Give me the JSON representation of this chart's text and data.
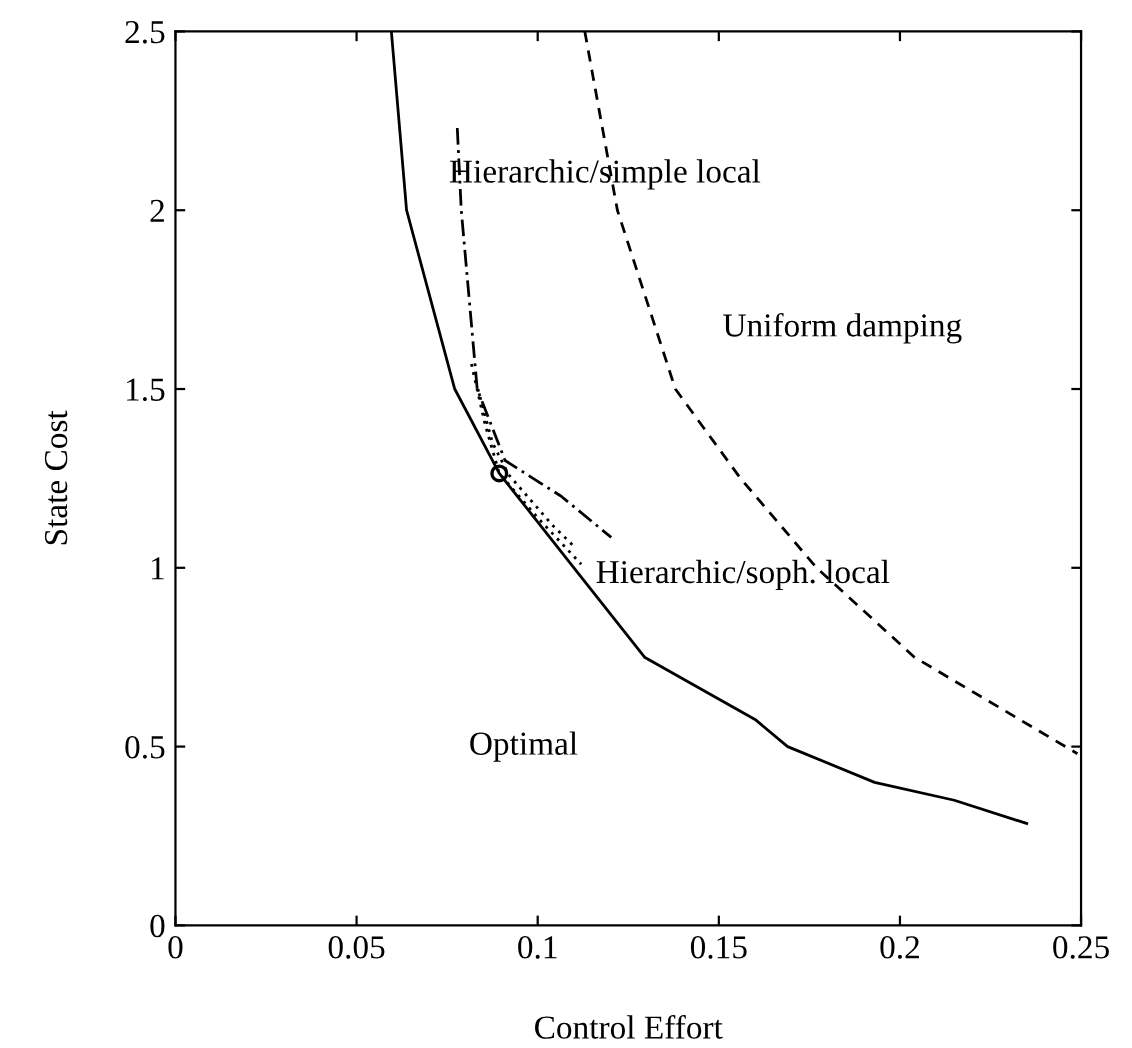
{
  "chart_data": {
    "type": "line",
    "xlabel": "Control Effort",
    "ylabel": "State Cost",
    "xlim": [
      0,
      0.25
    ],
    "ylim": [
      0,
      2.5
    ],
    "xticks": [
      0,
      0.05,
      0.1,
      0.15,
      0.2,
      0.25
    ],
    "yticks": [
      0,
      0.5,
      1,
      1.5,
      2,
      2.5
    ],
    "grid": false,
    "legend": false,
    "series": [
      {
        "color": "#000000",
        "line_style": "solid",
        "marker": "none",
        "x": [
          0.0596,
          0.0638,
          0.0771,
          0.0894,
          0.11,
          0.1295,
          0.16,
          0.169,
          0.193,
          0.215,
          0.235
        ],
        "values": [
          2.5,
          2.0,
          1.5,
          1.264,
          1.0,
          0.75,
          0.576,
          0.5,
          0.4,
          0.35,
          0.285
        ]
      },
      {
        "color": "#000000",
        "line_style": "dashed",
        "marker": "none",
        "x": [
          0.113,
          0.122,
          0.138,
          0.156,
          0.177,
          0.204,
          0.249
        ],
        "values": [
          2.5,
          2.0,
          1.5,
          1.25,
          1.0,
          0.75,
          0.48
        ]
      },
      {
        "color": "#000000",
        "line_style": "dashdot",
        "marker": "none",
        "x": [
          0.0778,
          0.0789,
          0.0833,
          0.091,
          0.1065,
          0.1203
        ],
        "values": [
          2.23,
          2.0,
          1.5,
          1.3,
          1.2,
          1.085
        ]
      },
      {
        "color": "#000000",
        "line_style": "dotted",
        "marker": "none",
        "x": [
          0.0817,
          0.0855,
          0.0894,
          0.1,
          0.112
        ],
        "values": [
          1.57,
          1.4,
          1.264,
          1.14,
          1.01
        ]
      },
      {
        "color": "#000000",
        "line_style": "dotted",
        "marker": "none",
        "x": [
          0.0835,
          0.0875,
          0.092,
          0.104,
          0.11
        ],
        "values": [
          1.5,
          1.35,
          1.26,
          1.12,
          1.06
        ]
      },
      {
        "type": "scatter",
        "color": "#000000",
        "marker": "circle",
        "x": [
          0.0894
        ],
        "values": [
          1.264
        ]
      }
    ],
    "annotations": [
      "Hierarchic/simple local",
      "Uniform damping",
      "Hierarchic/soph. local",
      "Optimal"
    ]
  }
}
